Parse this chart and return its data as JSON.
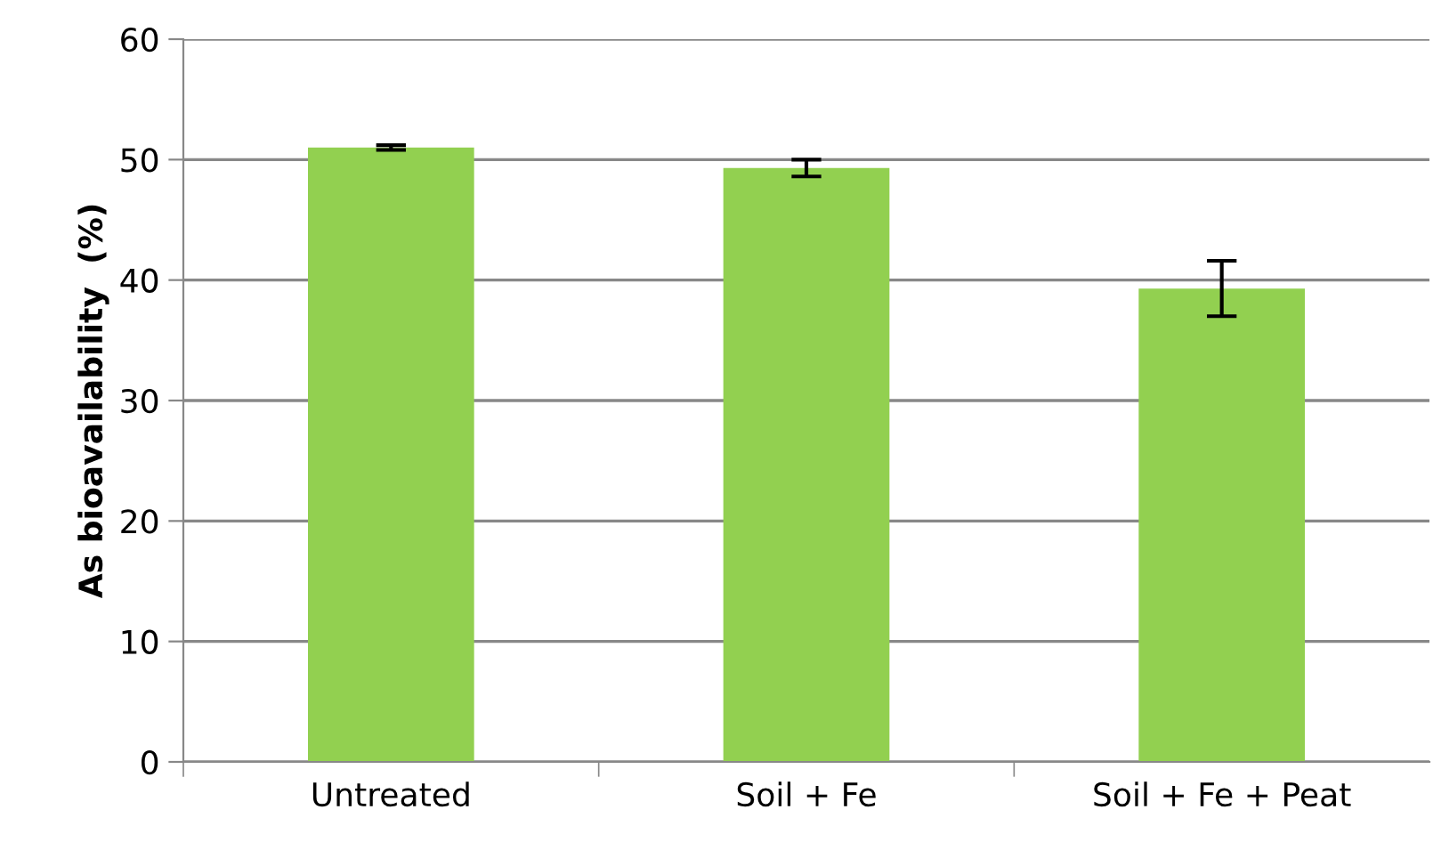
{
  "chart_data": {
    "type": "bar",
    "ylabel": "As bioavailability  (%)",
    "categories": [
      "Untreated",
      "Soil + Fe",
      "Soil + Fe + Peat"
    ],
    "values": [
      51.0,
      49.3,
      39.3
    ],
    "errors": [
      0.2,
      0.7,
      2.3
    ],
    "color": "#92d050",
    "ylim": [
      0,
      60
    ],
    "yticks": [
      0,
      10,
      20,
      30,
      40,
      50,
      60
    ],
    "grid": "y"
  }
}
